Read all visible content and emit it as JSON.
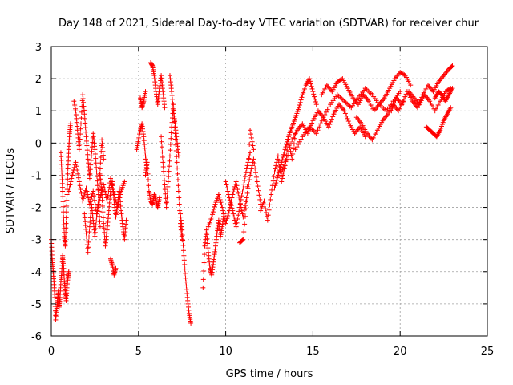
{
  "chart_data": {
    "type": "scatter",
    "title": "Day 148 of 2021, Sidereal Day-to-day VTEC variation (SDTVAR) for receiver chur",
    "xlabel": "GPS time / hours",
    "ylabel": "SDTVAR / TECUs",
    "xlim": [
      0,
      25
    ],
    "ylim": [
      -6,
      3
    ],
    "xticks": [
      0,
      5,
      10,
      15,
      20,
      25
    ],
    "yticks": [
      -6,
      -5,
      -4,
      -3,
      -2,
      -1,
      0,
      1,
      2,
      3
    ],
    "grid": true,
    "marker": "+",
    "series": [
      {
        "name": "SDTVAR",
        "color": "#ff0000",
        "segments": [
          {
            "x": [
              0.0,
              0.05,
              0.1,
              0.15,
              0.2,
              0.25,
              0.3,
              0.35,
              0.4,
              0.45,
              0.5,
              0.55,
              0.6,
              0.65,
              0.7,
              0.75,
              0.8,
              0.85,
              0.9,
              0.95,
              1.0
            ],
            "y": [
              -3.0,
              -3.6,
              -3.9,
              -4.3,
              -4.8,
              -5.5,
              -5.2,
              -4.9,
              -4.6,
              -5.1,
              -4.8,
              -4.3,
              -4.0,
              -3.5,
              -3.8,
              -4.3,
              -4.6,
              -4.9,
              -4.5,
              -4.2,
              -4.0
            ]
          },
          {
            "x": [
              0.55,
              0.6,
              0.65,
              0.7,
              0.75,
              0.8,
              0.85,
              0.9,
              0.95,
              1.0,
              1.05,
              1.1
            ],
            "y": [
              -0.3,
              -0.9,
              -1.5,
              -2.3,
              -2.9,
              -3.2,
              -2.5,
              -1.6,
              -0.8,
              -0.2,
              0.3,
              0.6
            ]
          },
          {
            "x": [
              1.3,
              1.4,
              1.5,
              1.6,
              1.7,
              1.8,
              1.9,
              2.0,
              2.1,
              2.2,
              2.3,
              2.4,
              2.5,
              2.6,
              2.7,
              2.8,
              2.9,
              3.0
            ],
            "y": [
              1.3,
              1.0,
              0.4,
              -0.2,
              0.6,
              1.5,
              0.9,
              0.2,
              -0.5,
              -1.1,
              -0.4,
              0.3,
              -0.2,
              -0.9,
              -1.6,
              -0.8,
              0.1,
              -0.5
            ]
          },
          {
            "x": [
              1.0,
              1.2,
              1.4,
              1.6,
              1.8,
              2.0,
              2.2,
              2.4,
              2.6,
              2.8,
              3.0,
              3.2,
              3.4,
              3.6,
              3.8,
              4.0,
              4.2
            ],
            "y": [
              -1.5,
              -1.0,
              -0.6,
              -1.2,
              -1.8,
              -1.4,
              -1.9,
              -1.5,
              -2.2,
              -1.7,
              -1.3,
              -1.8,
              -1.1,
              -1.6,
              -2.0,
              -1.5,
              -1.2
            ]
          },
          {
            "x": [
              1.9,
              2.0,
              2.1,
              2.2,
              2.3,
              2.4,
              2.5,
              2.6,
              2.7,
              2.8
            ],
            "y": [
              -2.2,
              -2.8,
              -3.4,
              -2.6,
              -1.9,
              -2.4,
              -2.9,
              -2.3,
              -1.8,
              -2.6
            ]
          },
          {
            "x": [
              2.8,
              2.9,
              3.0,
              3.1,
              3.2,
              3.3,
              3.4,
              3.5,
              3.6,
              3.7,
              3.8,
              3.9,
              4.0,
              4.1,
              4.2,
              4.3
            ],
            "y": [
              -1.0,
              -1.6,
              -2.5,
              -3.2,
              -2.7,
              -2.1,
              -1.5,
              -1.2,
              -1.8,
              -2.3,
              -1.9,
              -1.4,
              -2.1,
              -2.6,
              -3.0,
              -2.4
            ]
          },
          {
            "x": [
              3.4,
              3.5,
              3.6,
              3.7
            ],
            "y": [
              -3.6,
              -3.8,
              -4.1,
              -3.9
            ]
          },
          {
            "x": [
              4.9,
              5.0,
              5.1,
              5.2,
              5.3,
              5.4,
              5.5
            ],
            "y": [
              -0.2,
              0.1,
              0.4,
              0.6,
              0.2,
              -0.4,
              -0.9
            ]
          },
          {
            "x": [
              5.1,
              5.2,
              5.3,
              5.4
            ],
            "y": [
              1.4,
              1.1,
              1.3,
              1.6
            ]
          },
          {
            "x": [
              5.4,
              5.5,
              5.6,
              5.7,
              5.8,
              5.9,
              6.0,
              6.1,
              6.2
            ],
            "y": [
              -1.0,
              -0.6,
              -1.5,
              -1.8,
              -1.9,
              -1.6,
              -1.8,
              -2.0,
              -1.7
            ]
          },
          {
            "x": [
              5.7,
              5.8,
              5.9,
              6.0,
              6.1,
              6.2,
              6.3,
              6.4,
              6.5
            ],
            "y": [
              2.5,
              2.4,
              2.1,
              1.6,
              1.2,
              1.7,
              2.1,
              1.6,
              1.1
            ]
          },
          {
            "x": [
              6.3,
              6.4,
              6.5,
              6.6,
              6.7,
              6.8,
              6.9,
              7.0,
              7.1,
              7.2,
              7.3,
              7.4,
              7.5
            ],
            "y": [
              0.2,
              -0.6,
              -1.3,
              -2.0,
              -1.2,
              -0.4,
              0.5,
              1.2,
              0.3,
              -0.6,
              -1.5,
              -2.5,
              -3.0
            ]
          },
          {
            "x": [
              6.8,
              6.9,
              7.0,
              7.1,
              7.2,
              7.3
            ],
            "y": [
              2.1,
              1.6,
              1.0,
              0.6,
              0.1,
              -0.4
            ]
          },
          {
            "x": [
              7.4,
              7.5,
              7.6,
              7.7,
              7.8,
              7.9,
              8.0
            ],
            "y": [
              -2.2,
              -2.7,
              -3.5,
              -4.2,
              -4.8,
              -5.3,
              -5.6
            ]
          },
          {
            "x": [
              8.7,
              8.8,
              8.9,
              9.0,
              9.1,
              9.2,
              9.3,
              9.4,
              9.5,
              9.6,
              9.7,
              9.8,
              9.9
            ],
            "y": [
              -4.5,
              -3.2,
              -2.7,
              -3.4,
              -3.9,
              -4.1,
              -3.7,
              -3.3,
              -2.8,
              -2.4,
              -2.9,
              -2.6,
              -2.2
            ]
          },
          {
            "x": [
              9.0,
              9.2,
              9.4,
              9.6,
              9.8,
              10.0,
              10.2,
              10.4,
              10.6,
              10.8,
              11.0,
              11.2,
              11.4,
              11.6,
              11.8,
              12.0
            ],
            "y": [
              -2.6,
              -2.3,
              -1.9,
              -1.6,
              -2.0,
              -2.5,
              -2.1,
              -1.6,
              -1.2,
              -1.8,
              -2.3,
              -1.7,
              -1.0,
              -0.5,
              -1.2,
              -1.9
            ]
          },
          {
            "x": [
              10.0,
              10.2,
              10.4,
              10.6,
              10.8,
              11.0,
              11.2,
              11.4
            ],
            "y": [
              -1.2,
              -1.7,
              -2.1,
              -2.6,
              -2.0,
              -1.4,
              -0.8,
              -0.3
            ]
          },
          {
            "x": [
              10.8,
              11.0,
              11.2,
              11.4,
              11.6
            ],
            "y": [
              -3.1,
              -3.0,
              -1.8,
              0.4,
              -0.2
            ]
          },
          {
            "x": [
              12.0,
              12.2,
              12.4,
              12.6,
              12.8,
              13.0,
              13.2,
              13.4,
              13.6,
              13.8,
              14.0
            ],
            "y": [
              -2.1,
              -1.8,
              -2.4,
              -1.6,
              -0.9,
              -0.4,
              -1.2,
              -0.7,
              0.1,
              -0.5,
              0.3
            ]
          },
          {
            "x": [
              12.8,
              13.0,
              13.2,
              13.4,
              13.6,
              13.8,
              14.0,
              14.2,
              14.4,
              14.6,
              14.8,
              15.0,
              15.2
            ],
            "y": [
              -1.4,
              -1.0,
              -0.6,
              -0.2,
              0.2,
              0.5,
              0.8,
              1.1,
              1.5,
              1.8,
              2.0,
              1.6,
              1.2
            ]
          },
          {
            "x": [
              13.2,
              13.5,
              13.8,
              14.1,
              14.4,
              14.7,
              15.0,
              15.3,
              15.6,
              15.9,
              16.2,
              16.5,
              16.8,
              17.1,
              17.4,
              17.7,
              18.0
            ],
            "y": [
              -0.9,
              -0.5,
              0.1,
              0.4,
              0.6,
              0.3,
              0.7,
              1.0,
              0.8,
              0.5,
              0.9,
              1.2,
              1.0,
              0.6,
              0.3,
              0.5,
              0.2
            ]
          },
          {
            "x": [
              14.0,
              14.4,
              14.8,
              15.2,
              15.6,
              16.0,
              16.4,
              16.8,
              17.2,
              17.6,
              18.0,
              18.4,
              18.8,
              19.2,
              19.6,
              20.0
            ],
            "y": [
              -0.2,
              0.2,
              0.5,
              0.3,
              0.8,
              1.2,
              1.5,
              1.3,
              1.1,
              1.4,
              1.7,
              1.5,
              1.2,
              1.0,
              1.3,
              1.6
            ]
          },
          {
            "x": [
              15.5,
              15.8,
              16.1,
              16.4,
              16.7,
              17.0,
              17.3,
              17.6,
              17.9,
              18.2,
              18.5,
              18.8,
              19.1,
              19.4,
              19.7,
              20.0,
              20.3,
              20.6
            ],
            "y": [
              1.5,
              1.8,
              1.6,
              1.9,
              2.0,
              1.7,
              1.4,
              1.2,
              1.5,
              1.3,
              1.0,
              1.2,
              1.4,
              1.7,
              2.0,
              2.2,
              2.1,
              1.8
            ]
          },
          {
            "x": [
              17.5,
              17.8,
              18.1,
              18.4,
              18.7,
              19.0,
              19.3,
              19.6,
              19.9,
              20.2
            ],
            "y": [
              0.8,
              0.6,
              0.3,
              0.1,
              0.4,
              0.7,
              0.9,
              1.2,
              1.0,
              1.3
            ]
          },
          {
            "x": [
              19.5,
              19.8,
              20.1,
              20.4,
              20.7,
              21.0,
              21.3,
              21.6,
              21.9,
              22.2,
              22.5,
              22.8,
              23.0
            ],
            "y": [
              1.0,
              1.4,
              1.2,
              1.6,
              1.3,
              1.1,
              1.5,
              1.8,
              1.6,
              1.9,
              2.1,
              2.3,
              2.4
            ]
          },
          {
            "x": [
              20.5,
              20.8,
              21.1,
              21.4,
              21.7,
              22.0,
              22.3,
              22.6,
              22.9
            ],
            "y": [
              1.6,
              1.4,
              1.2,
              1.5,
              1.3,
              1.0,
              1.3,
              1.6,
              1.7
            ]
          },
          {
            "x": [
              21.5,
              21.7,
              21.9,
              22.1,
              22.3,
              22.5,
              22.7,
              22.9
            ],
            "y": [
              0.5,
              0.4,
              0.3,
              0.2,
              0.4,
              0.7,
              0.9,
              1.1
            ]
          },
          {
            "x": [
              22.0,
              22.2,
              22.4,
              22.6,
              22.8,
              23.0
            ],
            "y": [
              1.4,
              1.6,
              1.5,
              1.3,
              1.5,
              1.7
            ]
          }
        ]
      }
    ]
  }
}
